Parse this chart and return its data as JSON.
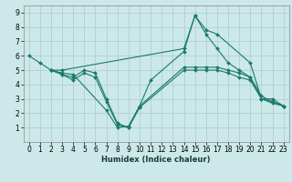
{
  "xlabel": "Humidex (Indice chaleur)",
  "ylabel": "",
  "xlim": [
    -0.5,
    23.5
  ],
  "ylim": [
    0,
    9.5
  ],
  "xticks": [
    0,
    1,
    2,
    3,
    4,
    5,
    6,
    7,
    8,
    9,
    10,
    11,
    12,
    13,
    14,
    15,
    16,
    17,
    18,
    19,
    20,
    21,
    22,
    23
  ],
  "yticks": [
    1,
    2,
    3,
    4,
    5,
    6,
    7,
    8,
    9
  ],
  "bg_color": "#cce8e8",
  "grid_color": "#aacccc",
  "line_color": "#1a7a6e",
  "lines": [
    {
      "x": [
        0,
        1,
        2,
        3,
        14,
        15,
        16,
        17,
        20,
        21,
        22,
        23
      ],
      "y": [
        6.0,
        5.5,
        5.0,
        5.0,
        6.5,
        8.8,
        7.8,
        7.5,
        5.5,
        3.0,
        3.0,
        2.5
      ]
    },
    {
      "x": [
        2,
        3,
        4,
        7,
        8,
        9,
        10,
        11,
        14,
        15,
        16,
        17,
        18,
        19,
        20,
        21,
        22,
        23
      ],
      "y": [
        5.0,
        4.8,
        4.7,
        2.2,
        1.0,
        1.1,
        2.5,
        4.3,
        6.3,
        8.8,
        7.5,
        6.5,
        5.5,
        5.0,
        4.5,
        3.0,
        2.8,
        2.5
      ]
    },
    {
      "x": [
        2,
        3,
        4,
        5,
        6,
        7,
        8,
        9,
        10,
        14,
        15,
        16,
        17,
        18,
        19,
        20,
        21,
        22,
        23
      ],
      "y": [
        5.0,
        4.7,
        4.5,
        5.0,
        4.8,
        3.0,
        1.3,
        1.0,
        2.5,
        5.2,
        5.2,
        5.2,
        5.2,
        5.0,
        4.8,
        4.5,
        3.2,
        2.8,
        2.5
      ]
    },
    {
      "x": [
        2,
        3,
        4,
        5,
        6,
        7,
        8,
        9,
        10,
        14,
        15,
        16,
        17,
        18,
        19,
        20,
        21,
        22,
        23
      ],
      "y": [
        5.0,
        4.7,
        4.3,
        4.8,
        4.5,
        2.8,
        1.2,
        1.0,
        2.4,
        5.0,
        5.0,
        5.0,
        5.0,
        4.8,
        4.5,
        4.3,
        3.0,
        2.7,
        2.5
      ]
    }
  ]
}
